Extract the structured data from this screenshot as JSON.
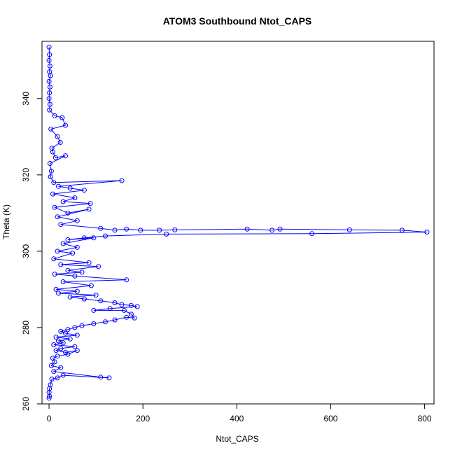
{
  "chart_data": {
    "type": "line",
    "title": "ATOM3 Southbound Ntot_CAPS",
    "xlabel": "Ntot_CAPS",
    "ylabel": "Theta (K)",
    "xlim": [
      -15,
      820
    ],
    "ylim": [
      260,
      355
    ],
    "x_ticks": [
      "0",
      "200",
      "400",
      "600",
      "800"
    ],
    "y_ticks": [
      "260",
      "280",
      "300",
      "320",
      "340"
    ],
    "grid": false,
    "legend": "none",
    "series": [
      {
        "color": "#0000ff",
        "marker": "open-circle",
        "points": [
          [
            0,
            353.5
          ],
          [
            1,
            351.5
          ],
          [
            0,
            350
          ],
          [
            2,
            348.5
          ],
          [
            1,
            347
          ],
          [
            3,
            346
          ],
          [
            0,
            344.5
          ],
          [
            2,
            343
          ],
          [
            1,
            341.5
          ],
          [
            0,
            340
          ],
          [
            2,
            338.5
          ],
          [
            1,
            337
          ],
          [
            12,
            335.5
          ],
          [
            28,
            335
          ],
          [
            35,
            333
          ],
          [
            4,
            332
          ],
          [
            18,
            330
          ],
          [
            24,
            328.5
          ],
          [
            6,
            327
          ],
          [
            8,
            326
          ],
          [
            14,
            324.5
          ],
          [
            35,
            325
          ],
          [
            2,
            323
          ],
          [
            5,
            321
          ],
          [
            3,
            319.5
          ],
          [
            10,
            318
          ],
          [
            155,
            318.5
          ],
          [
            20,
            317
          ],
          [
            45,
            316.5
          ],
          [
            75,
            316
          ],
          [
            8,
            315
          ],
          [
            55,
            314
          ],
          [
            30,
            313
          ],
          [
            88,
            312.5
          ],
          [
            12,
            311.5
          ],
          [
            40,
            310
          ],
          [
            85,
            311
          ],
          [
            18,
            309
          ],
          [
            60,
            308
          ],
          [
            25,
            307
          ],
          [
            110,
            306
          ],
          [
            140,
            305.5
          ],
          [
            165,
            305.8
          ],
          [
            195,
            305.5
          ],
          [
            235,
            305.5
          ],
          [
            268,
            305.6
          ],
          [
            422,
            305.8
          ],
          [
            475,
            305.5
          ],
          [
            492,
            305.8
          ],
          [
            640,
            305.6
          ],
          [
            752,
            305.5
          ],
          [
            805,
            305
          ],
          [
            560,
            304.6
          ],
          [
            250,
            304.5
          ],
          [
            120,
            304
          ],
          [
            75,
            303.5
          ],
          [
            40,
            303
          ],
          [
            95,
            303.5
          ],
          [
            30,
            302
          ],
          [
            60,
            301
          ],
          [
            18,
            300
          ],
          [
            50,
            299.5
          ],
          [
            10,
            298
          ],
          [
            85,
            297
          ],
          [
            25,
            296.5
          ],
          [
            105,
            296
          ],
          [
            40,
            295
          ],
          [
            70,
            294.5
          ],
          [
            12,
            294
          ],
          [
            55,
            293.5
          ],
          [
            165,
            292.5
          ],
          [
            30,
            292
          ],
          [
            90,
            291
          ],
          [
            15,
            290
          ],
          [
            60,
            289.5
          ],
          [
            20,
            289
          ],
          [
            100,
            288.5
          ],
          [
            45,
            288
          ],
          [
            75,
            287.5
          ],
          [
            110,
            287
          ],
          [
            140,
            286.5
          ],
          [
            155,
            286
          ],
          [
            175,
            285.8
          ],
          [
            188,
            285.5
          ],
          [
            130,
            285
          ],
          [
            95,
            284.5
          ],
          [
            160,
            284.5
          ],
          [
            175,
            283.5
          ],
          [
            182,
            282.5
          ],
          [
            165,
            282.7
          ],
          [
            140,
            282
          ],
          [
            120,
            281.5
          ],
          [
            95,
            281
          ],
          [
            70,
            280.5
          ],
          [
            55,
            280
          ],
          [
            40,
            279.5
          ],
          [
            25,
            279
          ],
          [
            35,
            278.5
          ],
          [
            60,
            278
          ],
          [
            15,
            277.5
          ],
          [
            45,
            277
          ],
          [
            20,
            276.5
          ],
          [
            30,
            276
          ],
          [
            10,
            275.5
          ],
          [
            55,
            275
          ],
          [
            25,
            274.5
          ],
          [
            15,
            274
          ],
          [
            35,
            273.5
          ],
          [
            60,
            274
          ],
          [
            40,
            273
          ],
          [
            18,
            272.5
          ],
          [
            8,
            272
          ],
          [
            12,
            271
          ],
          [
            5,
            270
          ],
          [
            25,
            269.5
          ],
          [
            10,
            268.5
          ],
          [
            110,
            267
          ],
          [
            128,
            266.8
          ],
          [
            30,
            267.5
          ],
          [
            18,
            266.8
          ],
          [
            6,
            266.5
          ],
          [
            3,
            265
          ],
          [
            1,
            264
          ],
          [
            0,
            263
          ],
          [
            1,
            262
          ],
          [
            0,
            261.5
          ]
        ]
      }
    ]
  }
}
